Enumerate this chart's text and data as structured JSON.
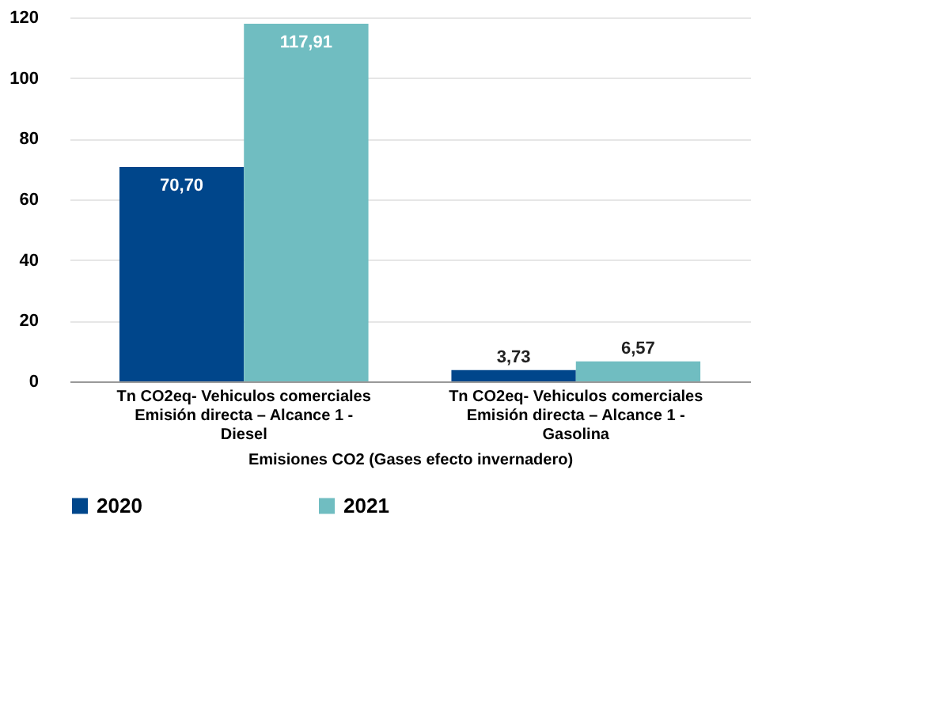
{
  "chart_data": {
    "type": "bar",
    "xlabel": "Emisiones CO2 (Gases efecto invernadero)",
    "categories": [
      "Tn CO2eq- Vehiculos comerciales\nEmisión directa – Alcance 1 -\nDiesel",
      "Tn CO2eq- Vehiculos comerciales\nEmisión directa – Alcance 1 -\nGasolina"
    ],
    "series": [
      {
        "name": "2020",
        "color": "#00468b",
        "values": [
          70.7,
          3.73
        ],
        "value_labels": [
          "70,70",
          "3,73"
        ]
      },
      {
        "name": "2021",
        "color": "#70bdc1",
        "values": [
          117.91,
          6.57
        ],
        "value_labels": [
          "117,91",
          "6,57"
        ]
      }
    ],
    "ylim": [
      0,
      120
    ],
    "yticks": [
      0,
      20,
      40,
      60,
      80,
      100,
      120
    ],
    "grid": "y",
    "legend": "bottom"
  }
}
